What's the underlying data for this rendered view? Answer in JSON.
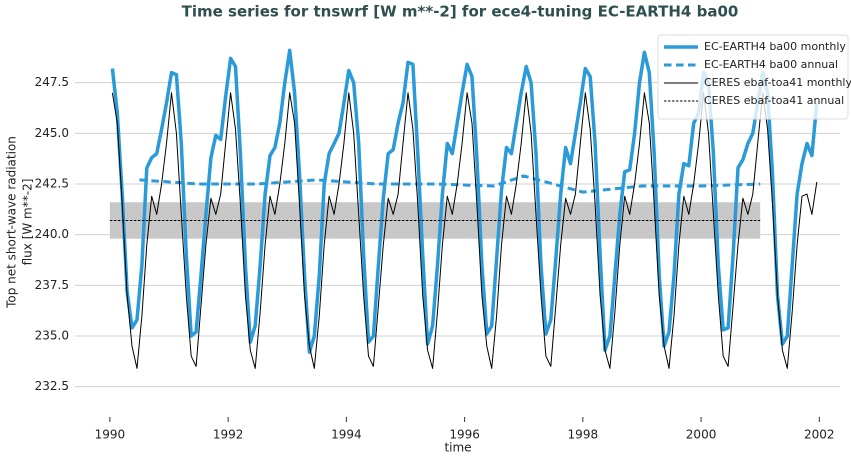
{
  "chart_data": {
    "type": "line",
    "title": "Time series for tnswrf [W m**-2] for ece4-tuning EC-EARTH4 ba00",
    "xlabel": "time",
    "ylabel": [
      "Top net short-wave radiation",
      "flux [W m**-2]"
    ],
    "xlim": [
      1989.41,
      2002.35
    ],
    "ylim": [
      231.1,
      250.1
    ],
    "xticks": [
      1990,
      1992,
      1994,
      1996,
      1998,
      2000,
      2002
    ],
    "yticks": [
      232.5,
      {
        "value": 235,
        "label": "235.0"
      },
      237.5,
      {
        "value": 240,
        "label": "240.0"
      },
      242.5,
      {
        "value": 245,
        "label": "245.0"
      },
      247.5
    ],
    "grid": true,
    "legend": "upper right",
    "x": [
      1990.042,
      1990.125,
      1990.208,
      1990.292,
      1990.375,
      1990.458,
      1990.542,
      1990.625,
      1990.708,
      1990.792,
      1990.875,
      1990.958,
      1991.042,
      1991.125,
      1991.208,
      1991.292,
      1991.375,
      1991.458,
      1991.542,
      1991.625,
      1991.708,
      1991.792,
      1991.875,
      1991.958,
      1992.042,
      1992.125,
      1992.208,
      1992.292,
      1992.375,
      1992.458,
      1992.542,
      1992.625,
      1992.708,
      1992.792,
      1992.875,
      1992.958,
      1993.042,
      1993.125,
      1993.208,
      1993.292,
      1993.375,
      1993.458,
      1993.542,
      1993.625,
      1993.708,
      1993.792,
      1993.875,
      1993.958,
      1994.042,
      1994.125,
      1994.208,
      1994.292,
      1994.375,
      1994.458,
      1994.542,
      1994.625,
      1994.708,
      1994.792,
      1994.875,
      1994.958,
      1995.042,
      1995.125,
      1995.208,
      1995.292,
      1995.375,
      1995.458,
      1995.542,
      1995.625,
      1995.708,
      1995.792,
      1995.875,
      1995.958,
      1996.042,
      1996.125,
      1996.208,
      1996.292,
      1996.375,
      1996.458,
      1996.542,
      1996.625,
      1996.708,
      1996.792,
      1996.875,
      1996.958,
      1997.042,
      1997.125,
      1997.208,
      1997.292,
      1997.375,
      1997.458,
      1997.542,
      1997.625,
      1997.708,
      1997.792,
      1997.875,
      1997.958,
      1998.042,
      1998.125,
      1998.208,
      1998.292,
      1998.375,
      1998.458,
      1998.542,
      1998.625,
      1998.708,
      1998.792,
      1998.875,
      1998.958,
      1999.042,
      1999.125,
      1999.208,
      1999.292,
      1999.375,
      1999.458,
      1999.542,
      1999.625,
      1999.708,
      1999.792,
      1999.875,
      1999.958,
      2000.042,
      2000.125,
      2000.208,
      2000.292,
      2000.375,
      2000.458,
      2000.542,
      2000.625,
      2000.708,
      2000.792,
      2000.875,
      2000.958,
      2001.042,
      2001.125,
      2001.208,
      2001.292,
      2001.375,
      2001.458,
      2001.542,
      2001.625,
      2001.708,
      2001.792,
      2001.875,
      2001.958
    ],
    "series": [
      {
        "name": "EC-EARTH4 ba00 monthly",
        "color": "#2b9ad9",
        "linestyle": "solid",
        "linewidth": 3.5,
        "values": [
          248.2,
          246.0,
          242.0,
          237.2,
          235.4,
          235.8,
          238.5,
          243.3,
          243.8,
          244.0,
          245.2,
          246.5,
          248.0,
          247.9,
          244.5,
          239.0,
          235.0,
          235.2,
          238.0,
          241.0,
          243.8,
          244.9,
          244.7,
          246.8,
          248.7,
          248.3,
          244.0,
          238.5,
          234.7,
          235.5,
          238.5,
          242.0,
          243.9,
          244.3,
          245.5,
          247.5,
          249.1,
          247.0,
          243.0,
          238.0,
          234.2,
          235.0,
          238.0,
          242.5,
          244.0,
          244.5,
          245.0,
          246.5,
          248.1,
          247.5,
          244.5,
          239.0,
          234.7,
          235.0,
          238.5,
          241.8,
          244.0,
          244.2,
          245.5,
          246.5,
          248.5,
          248.4,
          244.0,
          239.0,
          234.6,
          235.5,
          238.5,
          242.0,
          244.5,
          244.0,
          245.5,
          247.0,
          248.4,
          247.8,
          243.8,
          238.5,
          235.1,
          235.5,
          238.8,
          242.2,
          244.3,
          244.0,
          245.5,
          247.0,
          248.3,
          247.5,
          244.0,
          238.5,
          235.1,
          235.8,
          238.8,
          242.0,
          244.3,
          243.5,
          245.0,
          246.5,
          248.2,
          247.8,
          244.5,
          239.0,
          234.3,
          235.0,
          238.0,
          241.0,
          243.1,
          243.2,
          245.0,
          247.5,
          249.0,
          248.0,
          244.0,
          238.0,
          234.5,
          235.2,
          238.0,
          242.0,
          243.5,
          243.4,
          245.5,
          246.0,
          248.0,
          247.5,
          244.0,
          238.5,
          235.3,
          235.4,
          239.0,
          243.3,
          243.7,
          244.5,
          245.0,
          246.5,
          248.0,
          247.0,
          243.0,
          237.0,
          234.6,
          235.0,
          238.5,
          242.0,
          243.5,
          244.5,
          243.9,
          246.5
        ]
      },
      {
        "name": "EC-EARTH4 ba00 annual",
        "color": "#2b9ad9",
        "linestyle": "dashed",
        "linewidth": 3,
        "x": [
          1990.5,
          1991.5,
          1992.5,
          1993.5,
          1994.5,
          1995.5,
          1996.5,
          1997.0,
          1998.0,
          1999.0,
          2000.0,
          2001.0
        ],
        "values": [
          242.7,
          242.5,
          242.5,
          242.7,
          242.5,
          242.5,
          242.4,
          242.9,
          242.1,
          242.4,
          242.4,
          242.5
        ]
      },
      {
        "name": "CERES ebaf-toa41 monthly",
        "color": "#000000",
        "linestyle": "solid",
        "linewidth": 1,
        "values": [
          247.0,
          245.5,
          241.5,
          237.0,
          234.5,
          233.4,
          236.0,
          239.5,
          241.9,
          241.0,
          242.5,
          244.5,
          247.0,
          245.0,
          241.0,
          237.0,
          234.0,
          233.5,
          236.5,
          239.5,
          241.8,
          241.0,
          242.0,
          244.5,
          247.0,
          245.2,
          241.5,
          237.0,
          234.3,
          233.4,
          236.2,
          239.5,
          241.9,
          241.0,
          242.5,
          244.5,
          247.0,
          245.5,
          241.5,
          237.0,
          234.5,
          233.4,
          236.0,
          239.5,
          241.9,
          241.0,
          242.5,
          244.5,
          247.0,
          245.0,
          241.0,
          237.0,
          234.0,
          233.5,
          236.5,
          239.5,
          241.8,
          241.0,
          242.0,
          244.5,
          247.0,
          245.2,
          241.5,
          237.0,
          234.3,
          233.4,
          236.2,
          239.5,
          241.9,
          241.0,
          242.5,
          244.5,
          247.0,
          245.5,
          241.5,
          237.0,
          234.5,
          233.4,
          236.0,
          239.5,
          241.9,
          241.0,
          242.5,
          244.5,
          247.0,
          245.0,
          241.0,
          237.0,
          234.0,
          233.5,
          236.5,
          239.5,
          241.8,
          241.0,
          242.0,
          244.5,
          247.0,
          245.2,
          241.5,
          237.0,
          234.3,
          233.4,
          236.2,
          239.5,
          241.9,
          241.0,
          242.5,
          244.5,
          247.0,
          245.5,
          241.5,
          237.0,
          234.5,
          233.4,
          236.0,
          239.5,
          241.9,
          241.0,
          242.5,
          244.5,
          247.0,
          245.0,
          241.0,
          237.0,
          234.0,
          233.5,
          236.5,
          239.5,
          241.8,
          241.0,
          242.0,
          244.5,
          247.0,
          245.2,
          241.5,
          237.0,
          234.3,
          233.4,
          236.2,
          239.5,
          241.9,
          242.0,
          241.0,
          242.6
        ]
      },
      {
        "name": "CERES ebaf-toa41 annual",
        "color": "#000000",
        "linestyle": "dashed",
        "linewidth": 1,
        "x": [
          1990,
          2001
        ],
        "values": [
          240.7,
          240.7
        ],
        "band_low": [
          239.8,
          239.8
        ],
        "band_high": [
          241.6,
          241.6
        ],
        "band_color": "#c8c8c8"
      }
    ]
  }
}
